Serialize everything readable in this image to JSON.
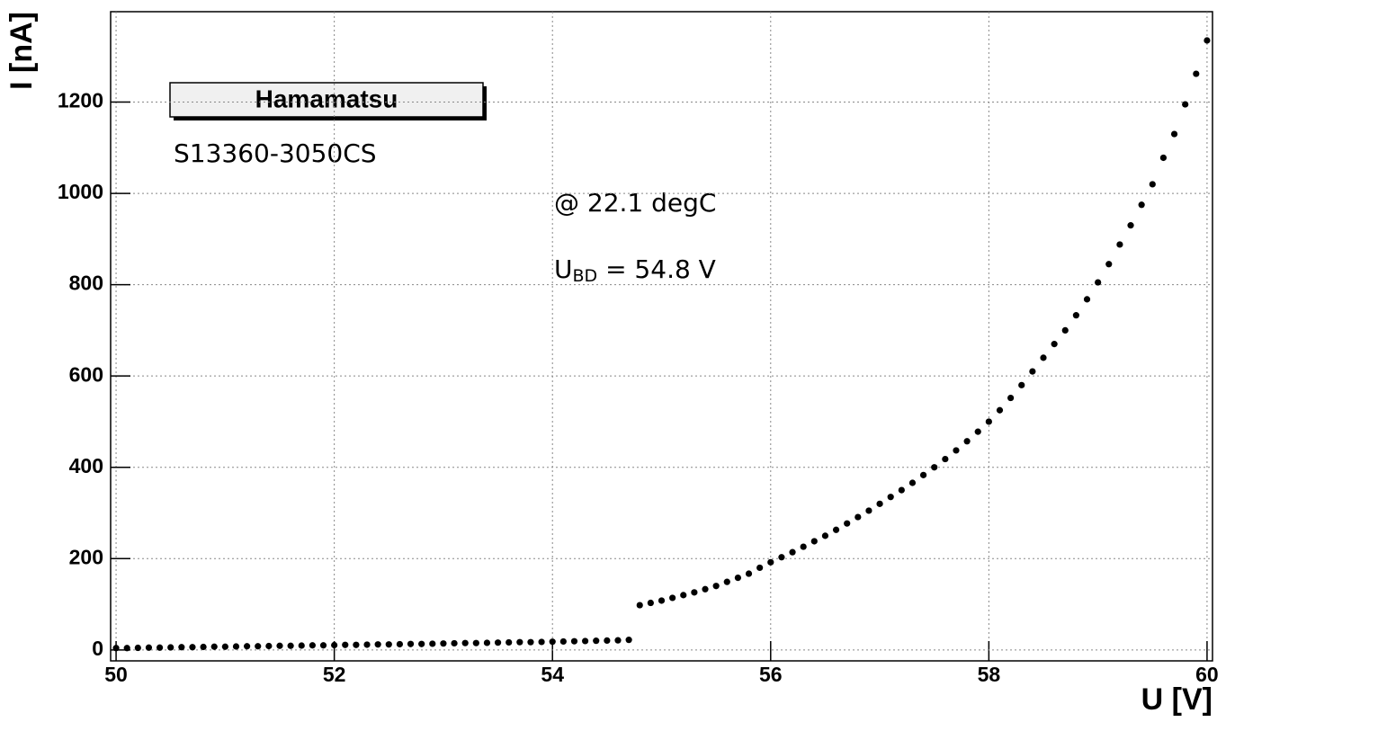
{
  "chart_data": {
    "type": "scatter",
    "x_label": "U [V]",
    "y_label": "I [nA]",
    "legend_title": "Hamamatsu",
    "annotations": {
      "device": "S13360-3050CS",
      "temperature": "@ 22.1 degC",
      "breakdown": {
        "base": "U",
        "sub": "BD",
        "rest": " = 54.8 V"
      }
    },
    "xlim": [
      49.95,
      60.05
    ],
    "ylim": [
      -24,
      1398
    ],
    "xticks": [
      50,
      52,
      54,
      56,
      58,
      60
    ],
    "yticks": [
      0,
      200,
      400,
      600,
      800,
      1000,
      1200
    ],
    "grid": true,
    "color": "#000000",
    "x": [
      50.0,
      50.1,
      50.2,
      50.3,
      50.4,
      50.5,
      50.6,
      50.7,
      50.8,
      50.9,
      51.0,
      51.1,
      51.2,
      51.3,
      51.4,
      51.5,
      51.6,
      51.7,
      51.8,
      51.9,
      52.0,
      52.1,
      52.2,
      52.3,
      52.4,
      52.5,
      52.6,
      52.7,
      52.8,
      52.9,
      53.0,
      53.1,
      53.2,
      53.3,
      53.4,
      53.5,
      53.6,
      53.7,
      53.8,
      53.9,
      54.0,
      54.1,
      54.2,
      54.3,
      54.4,
      54.5,
      54.6,
      54.7,
      54.8,
      54.9,
      55.0,
      55.1,
      55.2,
      55.3,
      55.4,
      55.5,
      55.6,
      55.7,
      55.8,
      55.9,
      56.0,
      56.1,
      56.2,
      56.3,
      56.4,
      56.5,
      56.6,
      56.7,
      56.8,
      56.9,
      57.0,
      57.1,
      57.2,
      57.3,
      57.4,
      57.5,
      57.6,
      57.7,
      57.8,
      57.9,
      58.0,
      58.1,
      58.2,
      58.3,
      58.4,
      58.5,
      58.6,
      58.7,
      58.8,
      58.9,
      59.0,
      59.1,
      59.2,
      59.3,
      59.4,
      59.5,
      59.6,
      59.7,
      59.8,
      59.9,
      60.0
    ],
    "values": [
      4,
      4,
      4.5,
      5,
      5,
      5.5,
      6,
      6,
      6.5,
      7,
      7,
      7.5,
      8,
      8,
      8.5,
      9,
      9,
      9.5,
      10,
      10,
      10.5,
      11,
      11,
      11.5,
      12,
      12,
      12.5,
      13,
      13,
      13.5,
      14,
      14.5,
      15,
      15,
      15.5,
      16,
      16.5,
      17,
      17,
      17.5,
      18,
      18.5,
      19,
      19.5,
      20,
      20.5,
      21,
      22,
      98,
      103,
      108,
      114,
      120,
      126,
      133,
      140,
      149,
      158,
      167,
      180,
      192,
      203,
      214,
      226,
      238,
      250,
      263,
      277,
      291,
      305,
      320,
      335,
      350,
      366,
      383,
      400,
      418,
      437,
      457,
      478,
      500,
      525,
      552,
      580,
      610,
      640,
      670,
      700,
      733,
      768,
      805,
      845,
      888,
      930,
      975,
      1020,
      1078,
      1130,
      1195,
      1262,
      1335
    ]
  }
}
